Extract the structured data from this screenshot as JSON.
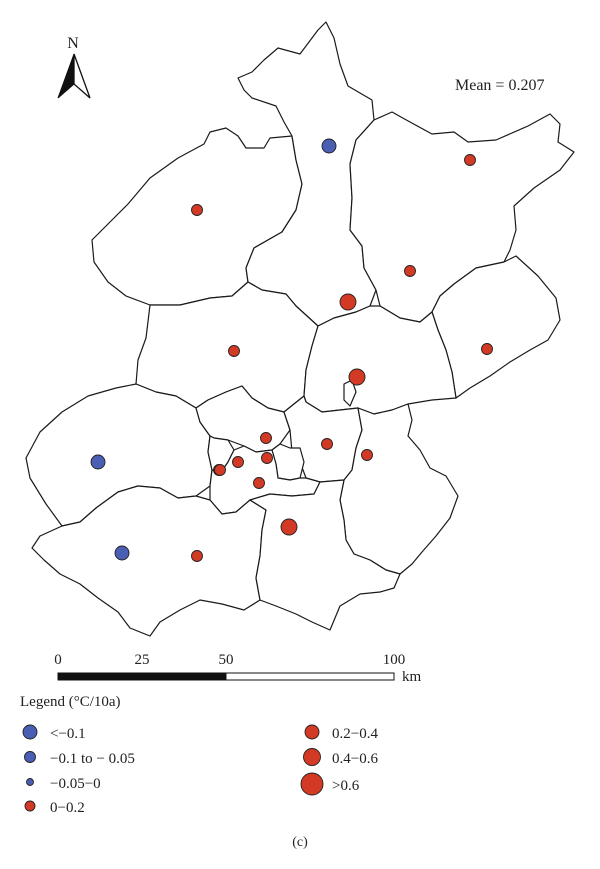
{
  "north_label": "N",
  "mean_text": "Mean = 0.207",
  "scale": {
    "ticks": [
      "0",
      "25",
      "50",
      "100"
    ],
    "unit": "km"
  },
  "legend": {
    "title": "Legend (°C/10a)",
    "items": [
      {
        "label": "<−0.1",
        "color": "#4a5fb4"
      },
      {
        "label": "−0.1 to − 0.05",
        "color": "#4a5fb4"
      },
      {
        "label": "−0.05−0",
        "color": "#4a5fb4"
      },
      {
        "label": "0−0.2",
        "color": "#d23a25"
      },
      {
        "label": "0.2−0.4",
        "color": "#d23a25"
      },
      {
        "label": "0.4−0.6",
        "color": "#d23a25"
      },
      {
        "label": ">0.6",
        "color": "#d23a25"
      }
    ]
  },
  "stations": [
    {
      "class": "<-0.1",
      "color": "#4a5fb4"
    },
    {
      "class": "0-0.2",
      "color": "#d23a25"
    },
    {
      "class": "0-0.2",
      "color": "#d23a25"
    },
    {
      "class": "0-0.2",
      "color": "#d23a25"
    },
    {
      "class": "0.2-0.4",
      "color": "#d23a25"
    },
    {
      "class": "0-0.2",
      "color": "#d23a25"
    },
    {
      "class": "0-0.2",
      "color": "#d23a25"
    },
    {
      "class": "0.2-0.4",
      "color": "#d23a25"
    },
    {
      "class": "0-0.2",
      "color": "#d23a25"
    },
    {
      "class": "0-0.2",
      "color": "#d23a25"
    },
    {
      "class": "0-0.2",
      "color": "#d23a25"
    },
    {
      "class": "0-0.2",
      "color": "#d23a25"
    },
    {
      "class": "0-0.2",
      "color": "#d23a25"
    },
    {
      "class": "0-0.2",
      "color": "#d23a25"
    },
    {
      "class": "0-0.2",
      "color": "#d23a25"
    },
    {
      "class": "<-0.1",
      "color": "#4a5fb4"
    },
    {
      "class": "0-0.2",
      "color": "#d23a25"
    },
    {
      "class": "0.2-0.4",
      "color": "#d23a25"
    },
    {
      "class": "<-0.1",
      "color": "#4a5fb4"
    },
    {
      "class": "0-0.2",
      "color": "#d23a25"
    }
  ],
  "caption": "(c)"
}
